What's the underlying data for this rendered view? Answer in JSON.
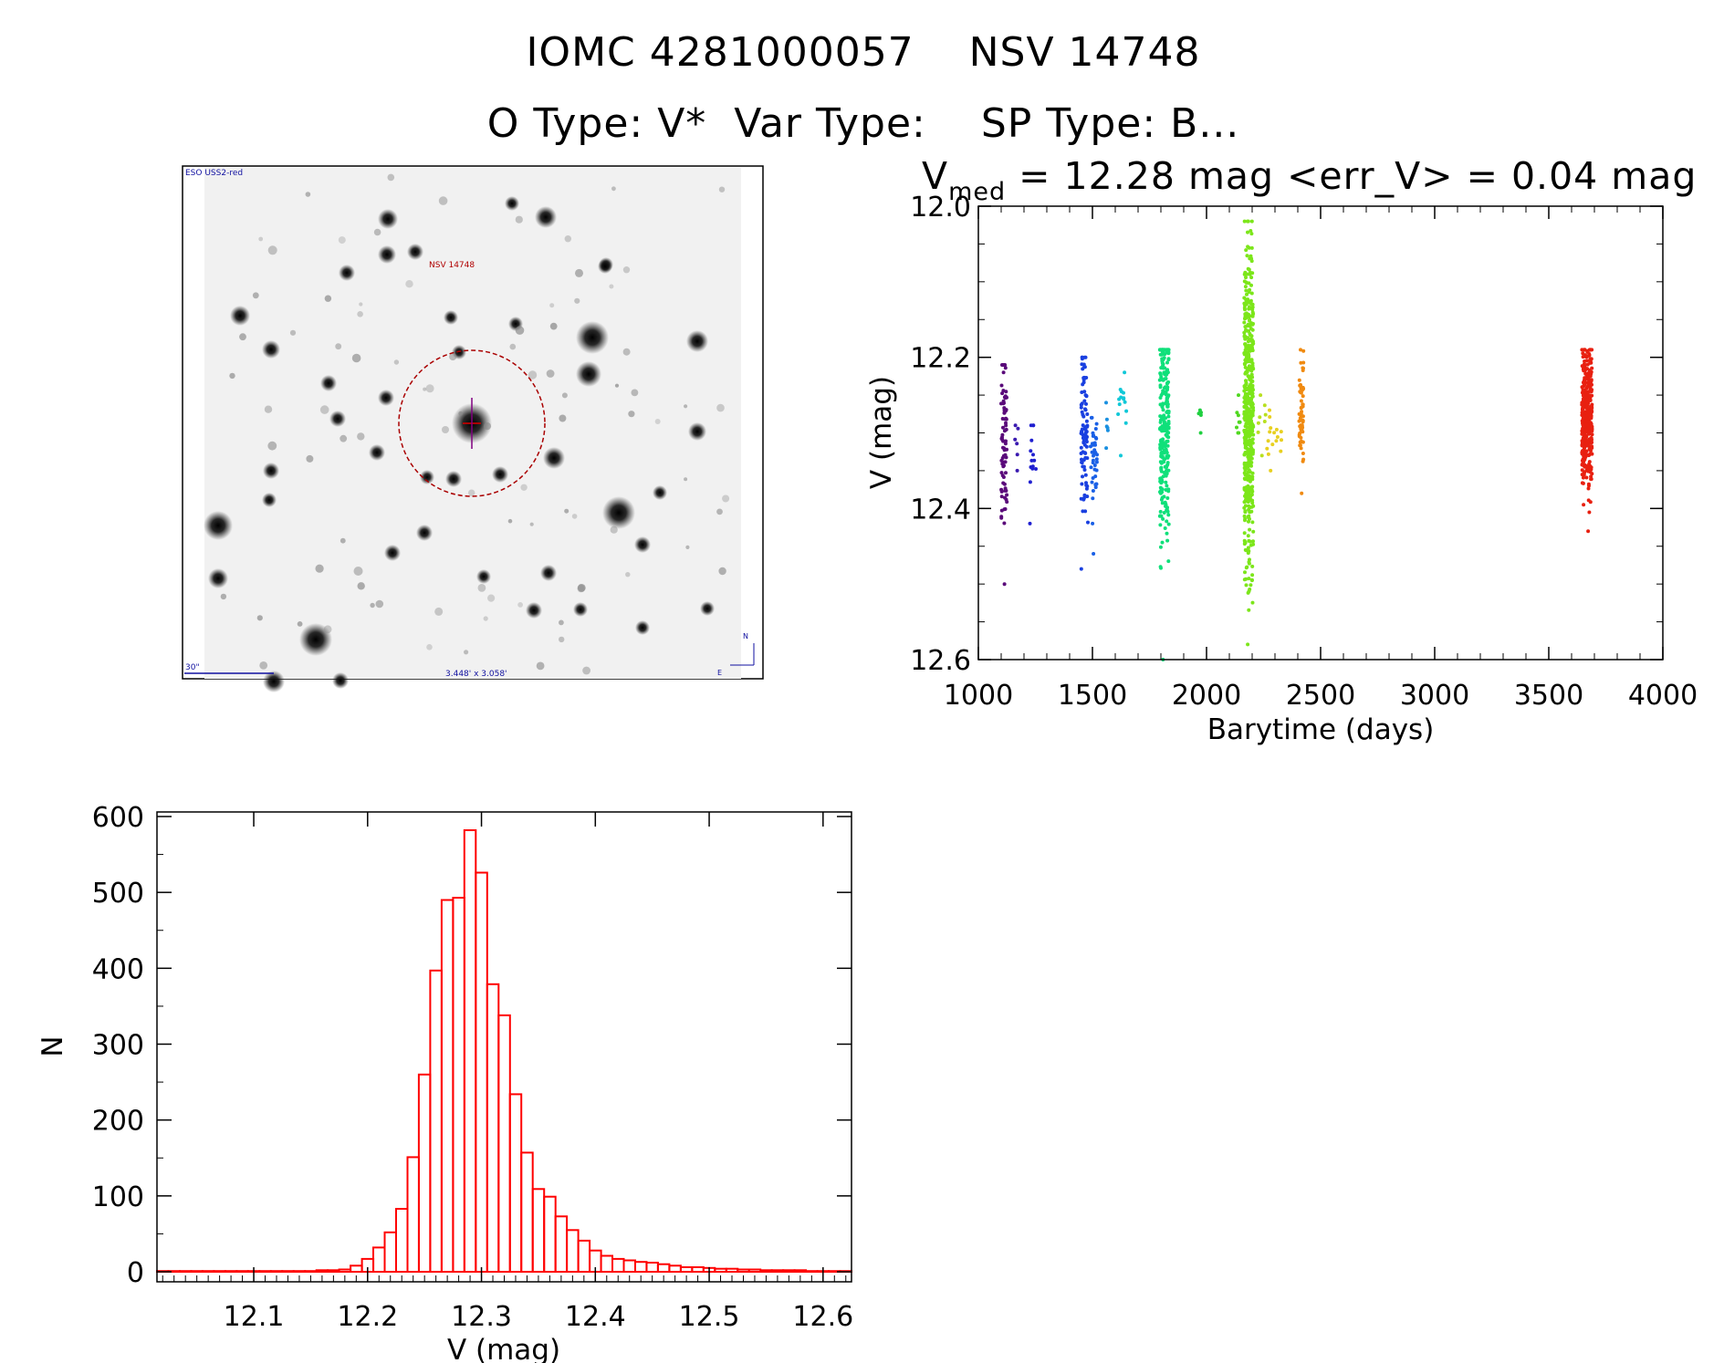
{
  "header": {
    "title": "IOMC 4281000057    NSV 14748",
    "subtitle": "O Type: V*  Var Type:    SP Type: B..."
  },
  "finder": {
    "survey_label": "ESO USS2-red",
    "target_label": "NSV 14748",
    "scale_label": "30\"",
    "size_label": "3.448' x 3.058'",
    "north_label": "N",
    "east_label": "E"
  },
  "chart_data": [
    {
      "type": "scatter",
      "title_prefix": "V",
      "title_sub": "med",
      "title_rest": " = 12.28 mag <err_V> = 0.04 mag",
      "xlabel": "Barytime (days)",
      "ylabel": "V (mag)",
      "xlim": [
        1000,
        4000
      ],
      "ylim": [
        12.6,
        12.0
      ],
      "y_inverted": true,
      "xticks": [
        1000,
        1500,
        2000,
        2500,
        3000,
        3500,
        4000
      ],
      "yticks": [
        12.0,
        12.2,
        12.4,
        12.6
      ],
      "ytick_labels": [
        "12.0",
        "12.2",
        "12.4",
        "12.6"
      ],
      "series": [
        {
          "color": "#5a0a7a",
          "x_range": [
            1100,
            1125
          ],
          "y_range": [
            12.21,
            12.5
          ],
          "y_center": 12.31,
          "count": 80
        },
        {
          "color": "#3a1ab0",
          "x_range": [
            1160,
            1175
          ],
          "y_range": [
            12.29,
            12.35
          ],
          "y_center": 12.31,
          "count": 6
        },
        {
          "color": "#2020d0",
          "x_range": [
            1225,
            1255
          ],
          "y_range": [
            12.29,
            12.42
          ],
          "y_center": 12.34,
          "count": 14
        },
        {
          "color": "#1a40e0",
          "x_range": [
            1450,
            1480
          ],
          "y_range": [
            12.2,
            12.48
          ],
          "y_center": 12.3,
          "count": 90
        },
        {
          "color": "#1a60e6",
          "x_range": [
            1490,
            1520
          ],
          "y_range": [
            12.28,
            12.46
          ],
          "y_center": 12.33,
          "count": 40
        },
        {
          "color": "#1a90e0",
          "x_range": [
            1560,
            1580
          ],
          "y_range": [
            12.26,
            12.32
          ],
          "y_center": 12.29,
          "count": 6
        },
        {
          "color": "#10c8d8",
          "x_range": [
            1610,
            1650
          ],
          "y_range": [
            12.22,
            12.33
          ],
          "y_center": 12.27,
          "count": 14
        },
        {
          "color": "#10e07a",
          "x_range": [
            1795,
            1835
          ],
          "y_range": [
            12.19,
            12.6
          ],
          "y_center": 12.28,
          "count": 260
        },
        {
          "color": "#20d040",
          "x_range": [
            1965,
            1980
          ],
          "y_range": [
            12.27,
            12.3
          ],
          "y_center": 12.28,
          "count": 6
        },
        {
          "color": "#50d820",
          "x_range": [
            2130,
            2150
          ],
          "y_range": [
            12.25,
            12.3
          ],
          "y_center": 12.28,
          "count": 8
        },
        {
          "color": "#7ce61a",
          "x_range": [
            2165,
            2205
          ],
          "y_range": [
            12.02,
            12.58
          ],
          "y_center": 12.27,
          "count": 520
        },
        {
          "color": "#b8e020",
          "x_range": [
            2225,
            2260
          ],
          "y_range": [
            12.25,
            12.33
          ],
          "y_center": 12.29,
          "count": 8
        },
        {
          "color": "#e8d020",
          "x_range": [
            2265,
            2330
          ],
          "y_range": [
            12.27,
            12.35
          ],
          "y_center": 12.31,
          "count": 16
        },
        {
          "color": "#f08a10",
          "x_range": [
            2405,
            2425
          ],
          "y_range": [
            12.19,
            12.38
          ],
          "y_center": 12.27,
          "count": 60
        },
        {
          "color": "#e82010",
          "x_range": [
            3645,
            3690
          ],
          "y_range": [
            12.19,
            12.43
          ],
          "y_center": 12.28,
          "count": 380
        }
      ]
    },
    {
      "type": "bar",
      "subtype": "histogram",
      "xlabel": "V (mag)",
      "ylabel": "N",
      "xlim": [
        12.015,
        12.625
      ],
      "ylim": [
        0,
        600
      ],
      "xticks": [
        12.1,
        12.2,
        12.3,
        12.4,
        12.5,
        12.6
      ],
      "xtick_labels": [
        "12.1",
        "12.2",
        "12.3",
        "12.4",
        "12.5",
        "12.6"
      ],
      "yticks": [
        0,
        100,
        200,
        300,
        400,
        500,
        600
      ],
      "ytick_labels": [
        "0",
        "100",
        "200",
        "300",
        "400",
        "500",
        "600"
      ],
      "bin_start": 12.015,
      "bin_width": 0.01,
      "bar_color": "#ff0000",
      "values": [
        1,
        1,
        1,
        1,
        1,
        1,
        1,
        1,
        1,
        1,
        1,
        1,
        1,
        1,
        2,
        2,
        3,
        8,
        17,
        32,
        52,
        83,
        151,
        260,
        397,
        490,
        493,
        582,
        526,
        379,
        338,
        234,
        157,
        109,
        99,
        73,
        55,
        41,
        28,
        21,
        17,
        15,
        13,
        12,
        10,
        8,
        6,
        6,
        5,
        4,
        4,
        3,
        3,
        2,
        2,
        2,
        2,
        1,
        1,
        1,
        1
      ]
    }
  ]
}
